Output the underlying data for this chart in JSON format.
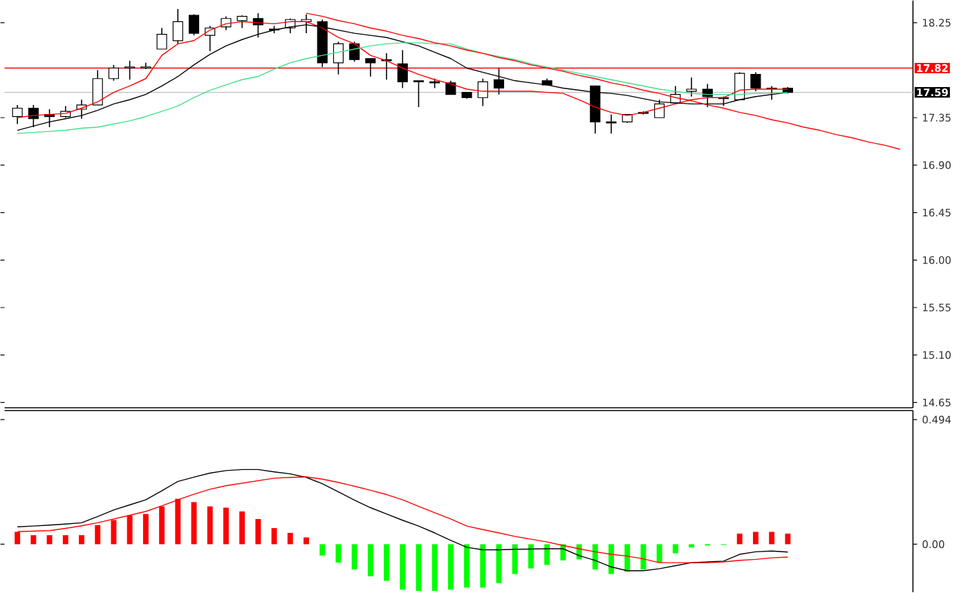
{
  "chart_data": [
    {
      "type": "candlestick",
      "categories": [
        null,
        null,
        null,
        null,
        null,
        null,
        null,
        null,
        null,
        null,
        null,
        null,
        null,
        null,
        null,
        null,
        null,
        null,
        null,
        null,
        null,
        null,
        null,
        null,
        null,
        null,
        null,
        null,
        null,
        null,
        null,
        null,
        null,
        null,
        null,
        null,
        null,
        null,
        null,
        null,
        null,
        null,
        null,
        null,
        null,
        null,
        null,
        null,
        null,
        null,
        null,
        null,
        null,
        null,
        null,
        null
      ],
      "ohlc": [
        [
          17.36,
          17.47,
          17.29,
          17.44
        ],
        [
          17.44,
          17.47,
          17.26,
          17.34
        ],
        [
          17.38,
          17.43,
          17.26,
          17.36
        ],
        [
          17.36,
          17.46,
          17.35,
          17.41
        ],
        [
          17.43,
          17.52,
          17.34,
          17.47
        ],
        [
          17.47,
          17.8,
          17.47,
          17.72
        ],
        [
          17.72,
          17.85,
          17.7,
          17.82
        ],
        [
          17.82,
          17.89,
          17.71,
          17.83
        ],
        [
          17.82,
          17.87,
          17.81,
          17.83
        ],
        [
          18.0,
          18.2,
          18.0,
          18.14
        ],
        [
          18.08,
          18.38,
          18.05,
          18.26
        ],
        [
          18.32,
          18.33,
          18.13,
          18.15
        ],
        [
          18.13,
          18.22,
          17.98,
          18.2
        ],
        [
          18.21,
          18.31,
          18.18,
          18.29
        ],
        [
          18.27,
          18.32,
          18.2,
          18.31
        ],
        [
          18.29,
          18.34,
          18.11,
          18.23
        ],
        [
          18.19,
          18.22,
          18.15,
          18.18
        ],
        [
          18.2,
          18.29,
          18.15,
          18.28
        ],
        [
          18.26,
          18.33,
          18.15,
          18.28
        ],
        [
          18.26,
          18.28,
          17.83,
          17.87
        ],
        [
          17.87,
          18.07,
          17.76,
          18.05
        ],
        [
          18.05,
          18.07,
          17.88,
          17.9
        ],
        [
          17.91,
          17.91,
          17.74,
          17.87
        ],
        [
          17.9,
          17.96,
          17.71,
          17.89
        ],
        [
          17.86,
          17.99,
          17.63,
          17.69
        ],
        [
          17.7,
          17.7,
          17.45,
          17.69
        ],
        [
          17.69,
          17.72,
          17.63,
          17.68
        ],
        [
          17.68,
          17.7,
          17.57,
          17.57
        ],
        [
          17.59,
          17.59,
          17.53,
          17.54
        ],
        [
          17.54,
          17.72,
          17.46,
          17.69
        ],
        [
          17.71,
          17.82,
          17.57,
          17.63
        ],
        null,
        null,
        [
          17.7,
          17.72,
          17.66,
          17.66
        ],
        null,
        null,
        [
          17.65,
          17.65,
          17.2,
          17.31
        ],
        [
          17.31,
          17.38,
          17.2,
          17.3
        ],
        [
          17.31,
          17.38,
          17.3,
          17.38
        ],
        [
          17.39,
          17.41,
          17.38,
          17.4
        ],
        [
          17.35,
          17.52,
          17.35,
          17.48
        ],
        [
          17.49,
          17.65,
          17.48,
          17.57
        ],
        [
          17.6,
          17.73,
          17.55,
          17.62
        ],
        [
          17.62,
          17.67,
          17.45,
          17.55
        ],
        [
          17.54,
          17.55,
          17.46,
          17.53
        ],
        [
          17.52,
          17.78,
          17.52,
          17.77
        ],
        [
          17.76,
          17.78,
          17.6,
          17.63
        ],
        [
          17.62,
          17.65,
          17.52,
          17.63
        ],
        [
          17.63,
          17.64,
          17.58,
          17.59
        ],
        null,
        null,
        null,
        null,
        null,
        null,
        null
      ],
      "series": [
        {
          "type": "line",
          "color": "#ff0000",
          "values": [
            17.35,
            17.37,
            17.38,
            17.39,
            17.44,
            17.5,
            17.59,
            17.65,
            17.72,
            17.94,
            18.05,
            18.08,
            18.18,
            18.24,
            18.26,
            18.25,
            18.24,
            18.26,
            18.26,
            18.2,
            18.11,
            18.05,
            17.94,
            17.89,
            17.82,
            17.76,
            17.71,
            17.67,
            17.62,
            17.6,
            17.6,
            17.6,
            17.6,
            17.59,
            17.58,
            17.52,
            17.45,
            17.4,
            17.37,
            17.4,
            17.44,
            17.48,
            17.52,
            17.54,
            17.54,
            17.61,
            17.62,
            17.62,
            17.62,
            null,
            null,
            null,
            null,
            null,
            null,
            null
          ]
        },
        {
          "type": "line",
          "color": "#000000",
          "values": [
            17.23,
            17.27,
            17.31,
            17.34,
            17.37,
            17.42,
            17.48,
            17.52,
            17.57,
            17.65,
            17.74,
            17.85,
            17.95,
            18.03,
            18.09,
            18.14,
            18.18,
            18.21,
            18.23,
            18.21,
            18.18,
            18.15,
            18.13,
            18.11,
            18.07,
            18.03,
            17.97,
            17.91,
            17.82,
            17.78,
            17.74,
            17.7,
            17.68,
            17.66,
            17.63,
            17.61,
            17.59,
            17.58,
            17.56,
            17.53,
            17.5,
            17.49,
            17.48,
            17.48,
            17.48,
            17.52,
            17.55,
            17.57,
            17.59,
            null,
            null,
            null,
            null,
            null,
            null,
            null
          ]
        },
        {
          "type": "line",
          "color": "#3ee08c",
          "values": [
            17.2,
            17.21,
            17.22,
            17.23,
            17.25,
            17.26,
            17.29,
            17.32,
            17.36,
            17.41,
            17.46,
            17.54,
            17.61,
            17.66,
            17.71,
            17.74,
            17.81,
            17.87,
            17.91,
            17.94,
            17.97,
            18.0,
            18.03,
            18.05,
            18.06,
            18.06,
            18.05,
            18.05,
            18.0,
            17.96,
            17.93,
            17.9,
            17.86,
            17.83,
            17.8,
            17.77,
            17.74,
            17.71,
            17.68,
            17.65,
            17.62,
            17.6,
            17.58,
            17.57,
            17.57,
            17.57,
            17.58,
            17.58,
            17.59,
            null,
            null,
            null,
            null,
            null,
            null,
            null
          ]
        },
        {
          "type": "line",
          "color": "#ff0000",
          "values": [
            null,
            null,
            null,
            null,
            null,
            null,
            null,
            null,
            null,
            null,
            null,
            null,
            null,
            null,
            null,
            null,
            null,
            null,
            18.34,
            18.31,
            18.27,
            18.24,
            18.2,
            18.17,
            18.13,
            18.1,
            18.06,
            18.03,
            17.99,
            17.96,
            17.92,
            17.89,
            17.85,
            17.82,
            17.79,
            17.75,
            17.72,
            17.68,
            17.65,
            17.61,
            17.58,
            17.54,
            17.51,
            17.47,
            17.44,
            17.4,
            17.37,
            17.33,
            17.3,
            17.26,
            17.23,
            17.19,
            17.16,
            17.12,
            17.09,
            17.05
          ]
        }
      ],
      "ref_lines": [
        {
          "axis": "y",
          "value": 17.82,
          "label": "17.82",
          "color": "#ff0000"
        },
        {
          "axis": "y",
          "value": 17.59,
          "label": "17.59",
          "color": "#c0c0c0"
        }
      ],
      "ylim": [
        14.6,
        18.46
      ],
      "yticks": [
        18.25,
        17.35,
        {
          "value": 16.9,
          "label": "16.90"
        },
        16.45,
        {
          "value": 16,
          "label": "16.00"
        },
        15.55,
        {
          "value": 15.1,
          "label": "15.10"
        },
        14.65
      ],
      "tick_labels": "y"
    },
    {
      "type": "bar",
      "categories": [
        null,
        null,
        null,
        null,
        null,
        null,
        null,
        null,
        null,
        null,
        null,
        null,
        null,
        null,
        null,
        null,
        null,
        null,
        null,
        null,
        null,
        null,
        null,
        null,
        null,
        null,
        null,
        null,
        null,
        null,
        null,
        null,
        null,
        null,
        null,
        null,
        null,
        null,
        null,
        null,
        null,
        null,
        null,
        null,
        null,
        null,
        null,
        null,
        null,
        null,
        null,
        null,
        null,
        null,
        null,
        null
      ],
      "series": [
        {
          "type": "bar",
          "values": [
            0.049,
            0.036,
            0.036,
            0.036,
            0.036,
            0.076,
            0.096,
            0.114,
            0.12,
            0.15,
            0.18,
            0.167,
            0.15,
            0.145,
            0.13,
            0.1,
            0.064,
            0.045,
            0.027,
            -0.045,
            -0.073,
            -0.1,
            -0.127,
            -0.145,
            -0.18,
            -0.185,
            -0.185,
            -0.18,
            -0.172,
            -0.172,
            -0.154,
            -0.118,
            -0.096,
            -0.082,
            -0.064,
            -0.06,
            -0.1,
            -0.118,
            -0.109,
            -0.1,
            -0.073,
            -0.036,
            -0.013,
            -0.005,
            -0.003,
            0.042,
            0.049,
            0.049,
            0.042,
            null,
            null,
            null,
            null,
            null,
            null,
            null
          ],
          "colors": [
            "#ff0000",
            "#ff0000",
            "#ff0000",
            "#ff0000",
            "#ff0000",
            "#ff0000",
            "#ff0000",
            "#ff0000",
            "#ff0000",
            "#ff0000",
            "#ff0000",
            "#ff0000",
            "#ff0000",
            "#ff0000",
            "#ff0000",
            "#ff0000",
            "#ff0000",
            "#ff0000",
            "#ff0000",
            "#00ff00",
            "#00ff00",
            "#00ff00",
            "#00ff00",
            "#00ff00",
            "#00ff00",
            "#00ff00",
            "#00ff00",
            "#00ff00",
            "#00ff00",
            "#00ff00",
            "#00ff00",
            "#00ff00",
            "#00ff00",
            "#00ff00",
            "#00ff00",
            "#00ff00",
            "#00ff00",
            "#00ff00",
            "#00ff00",
            "#00ff00",
            "#00ff00",
            "#00ff00",
            "#00ff00",
            "#00ff00",
            "#00ff00",
            "#ff0000",
            "#ff0000",
            "#ff0000",
            "#ff0000",
            null,
            null,
            null,
            null,
            null,
            null,
            null
          ]
        },
        {
          "type": "line",
          "color": "#000000",
          "values": [
            0.069,
            0.072,
            0.076,
            0.08,
            0.085,
            0.11,
            0.136,
            0.156,
            0.176,
            0.212,
            0.249,
            0.266,
            0.282,
            0.292,
            0.296,
            0.296,
            0.287,
            0.279,
            0.265,
            0.24,
            0.208,
            0.175,
            0.145,
            0.12,
            0.095,
            0.072,
            0.045,
            0.015,
            -0.012,
            -0.022,
            -0.022,
            -0.02,
            -0.019,
            -0.018,
            -0.018,
            -0.045,
            -0.064,
            -0.09,
            -0.105,
            -0.105,
            -0.097,
            -0.085,
            -0.073,
            -0.07,
            -0.067,
            -0.04,
            -0.03,
            -0.027,
            -0.031,
            null,
            null,
            null,
            null,
            null,
            null,
            null
          ]
        },
        {
          "type": "line",
          "color": "#ff0000",
          "values": [
            0.05,
            0.052,
            0.054,
            0.063,
            0.073,
            0.085,
            0.1,
            0.115,
            0.13,
            0.152,
            0.176,
            0.198,
            0.218,
            0.232,
            0.242,
            0.252,
            0.262,
            0.265,
            0.267,
            0.258,
            0.245,
            0.23,
            0.214,
            0.197,
            0.176,
            0.15,
            0.125,
            0.1,
            0.072,
            0.058,
            0.045,
            0.031,
            0.02,
            0.009,
            -0.005,
            -0.018,
            -0.03,
            -0.04,
            -0.047,
            -0.058,
            -0.073,
            -0.073,
            -0.073,
            -0.073,
            -0.07,
            -0.064,
            -0.06,
            -0.054,
            -0.051,
            null,
            null,
            null,
            null,
            null,
            null,
            null
          ]
        }
      ],
      "ylim": [
        -0.19,
        0.53
      ],
      "yticks": [
        0.494,
        {
          "value": 0,
          "label": "0.00"
        }
      ],
      "tick_labels": "y"
    }
  ]
}
